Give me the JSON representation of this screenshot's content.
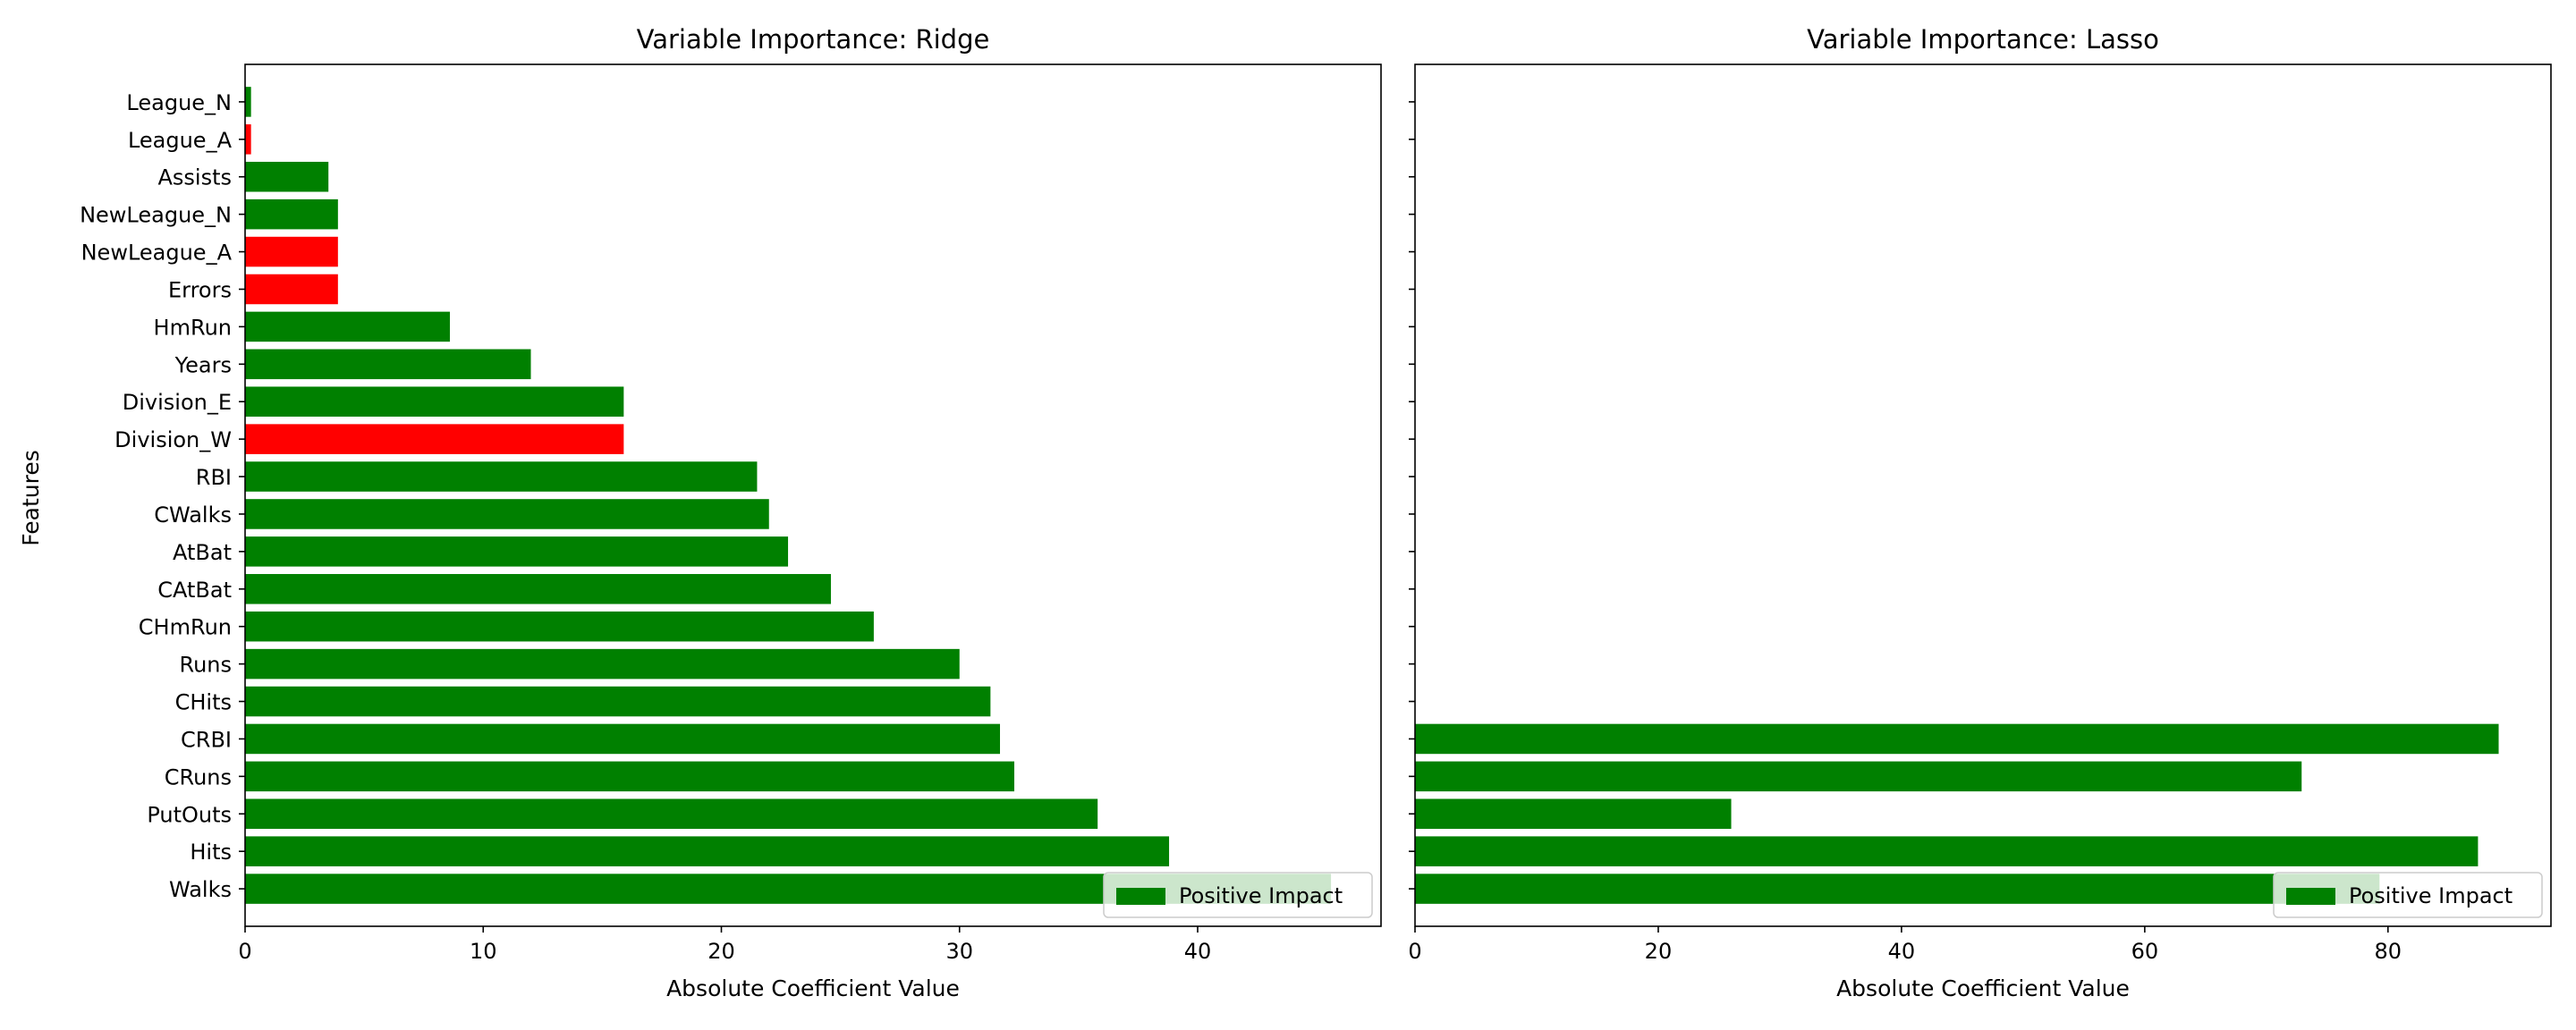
{
  "figure": {
    "ylabel": "Features"
  },
  "chart_data": [
    {
      "type": "bar",
      "orientation": "horizontal",
      "title": "Variable Importance: Ridge",
      "xlabel": "Absolute Coefficient Value",
      "ylabel": "Features",
      "xlim": [
        0,
        47.7
      ],
      "xticks": [
        "0",
        "10",
        "20",
        "30",
        "40"
      ],
      "legend": {
        "label": "Positive Impact",
        "placement": "lower right"
      },
      "categories": [
        "Walks",
        "Hits",
        "PutOuts",
        "CRuns",
        "CRBI",
        "CHits",
        "Runs",
        "CHmRun",
        "CAtBat",
        "AtBat",
        "CWalks",
        "RBI",
        "Division_W",
        "Division_E",
        "Years",
        "HmRun",
        "Errors",
        "NewLeague_A",
        "NewLeague_N",
        "Assists",
        "League_A",
        "League_N"
      ],
      "values": [
        45.6,
        38.8,
        35.8,
        32.3,
        31.7,
        31.3,
        30.0,
        26.4,
        24.6,
        22.8,
        22.0,
        21.5,
        15.9,
        15.9,
        12.0,
        8.6,
        3.9,
        3.9,
        3.9,
        3.5,
        0.25,
        0.25
      ],
      "impact": [
        "positive",
        "positive",
        "positive",
        "positive",
        "positive",
        "positive",
        "positive",
        "positive",
        "positive",
        "positive",
        "positive",
        "positive",
        "negative",
        "positive",
        "positive",
        "positive",
        "negative",
        "negative",
        "positive",
        "positive",
        "negative",
        "positive"
      ],
      "grid": false
    },
    {
      "type": "bar",
      "orientation": "horizontal",
      "title": "Variable Importance: Lasso",
      "xlabel": "Absolute Coefficient Value",
      "xlim": [
        0,
        93.4
      ],
      "xticks": [
        "0",
        "20",
        "40",
        "60",
        "80"
      ],
      "legend": {
        "label": "Positive Impact",
        "placement": "lower right"
      },
      "categories": [
        "Walks",
        "Hits",
        "PutOuts",
        "CRuns",
        "CRBI",
        "CHits",
        "Runs",
        "CHmRun",
        "CAtBat",
        "AtBat",
        "CWalks",
        "RBI",
        "Division_W",
        "Division_E",
        "Years",
        "HmRun",
        "Errors",
        "NewLeague_A",
        "NewLeague_N",
        "Assists",
        "League_A",
        "League_N"
      ],
      "values": [
        79.3,
        87.4,
        26.0,
        72.9,
        89.1,
        0,
        0,
        0,
        0,
        0,
        0,
        0,
        0,
        0,
        0,
        0,
        0,
        0,
        0,
        0,
        0,
        0
      ],
      "impact": [
        "positive",
        "positive",
        "positive",
        "positive",
        "positive",
        "positive",
        "positive",
        "positive",
        "positive",
        "positive",
        "positive",
        "positive",
        "positive",
        "positive",
        "positive",
        "positive",
        "positive",
        "positive",
        "positive",
        "positive",
        "positive",
        "positive"
      ],
      "grid": false
    }
  ],
  "colors": {
    "positive": "#008000",
    "negative": "#ff0000",
    "axis": "#000000",
    "legend_border": "#cccccc"
  }
}
